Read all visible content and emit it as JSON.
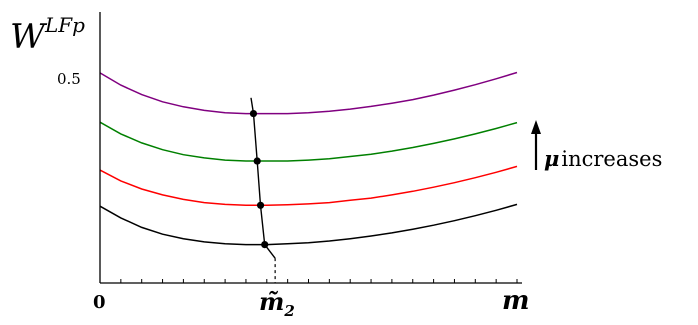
{
  "chart_data": {
    "type": "line",
    "ylabel": "W^{LFp}",
    "ylabel_base": "W",
    "ylabel_sup": "LFp",
    "xlabel": "m",
    "x_tick_labels": [
      {
        "label": "0",
        "x": 0
      },
      {
        "label": "m̃",
        "sub": "2",
        "x": 0.4
      }
    ],
    "y_tick_labels": [
      {
        "label": "0.5",
        "y": 0.5
      }
    ],
    "xlim": [
      0,
      1
    ],
    "ylim": [
      0,
      0.56
    ],
    "grid": false,
    "annotation": {
      "mu_symbol": "μ",
      "text": "increases",
      "direction": "up"
    },
    "x": [
      0,
      0.05,
      0.1,
      0.15,
      0.2,
      0.25,
      0.3,
      0.35,
      0.4,
      0.45,
      0.5,
      0.55,
      0.6,
      0.65,
      0.7,
      0.75,
      0.8,
      0.85,
      0.9,
      0.95,
      1
    ],
    "series": [
      {
        "color": "#000000",
        "values": [
          0.17,
          0.144,
          0.123,
          0.108,
          0.098,
          0.091,
          0.087,
          0.085,
          0.085,
          0.087,
          0.089,
          0.093,
          0.098,
          0.104,
          0.111,
          0.119,
          0.128,
          0.138,
          0.149,
          0.161,
          0.174
        ]
      },
      {
        "color": "#ff0000",
        "values": [
          0.25,
          0.226,
          0.208,
          0.195,
          0.185,
          0.178,
          0.174,
          0.172,
          0.172,
          0.173,
          0.175,
          0.178,
          0.183,
          0.188,
          0.195,
          0.203,
          0.212,
          0.222,
          0.233,
          0.245,
          0.258
        ]
      },
      {
        "color": "#008000",
        "values": [
          0.356,
          0.33,
          0.31,
          0.295,
          0.284,
          0.277,
          0.272,
          0.27,
          0.27,
          0.27,
          0.272,
          0.275,
          0.28,
          0.285,
          0.292,
          0.3,
          0.309,
          0.319,
          0.33,
          0.342,
          0.355
        ]
      },
      {
        "color": "#800080",
        "values": [
          0.465,
          0.438,
          0.417,
          0.401,
          0.39,
          0.382,
          0.377,
          0.375,
          0.375,
          0.375,
          0.377,
          0.38,
          0.385,
          0.391,
          0.398,
          0.406,
          0.416,
          0.427,
          0.439,
          0.452,
          0.466
        ]
      }
    ],
    "optimum_locus": {
      "x": [
        0.42,
        0.395,
        0.385,
        0.377,
        0.368
      ],
      "y": [
        0.055,
        0.085,
        0.172,
        0.27,
        0.375
      ],
      "dashed_to_axis_x": 0.42
    },
    "optimum_points": [
      {
        "x": 0.395,
        "y": 0.085
      },
      {
        "x": 0.385,
        "y": 0.172
      },
      {
        "x": 0.377,
        "y": 0.27
      },
      {
        "x": 0.368,
        "y": 0.375
      }
    ]
  },
  "colors": {
    "axis": "#000000",
    "tick": "#000000"
  }
}
